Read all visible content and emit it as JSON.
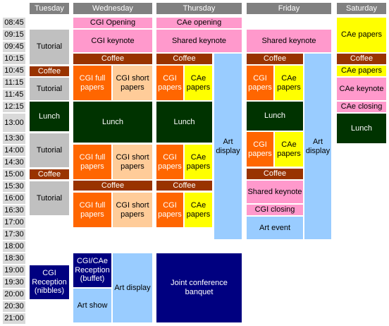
{
  "days": {
    "tuesday": "Tuesday",
    "wednesday": "Wednesday",
    "thursday": "Thursday",
    "friday": "Friday",
    "saturday": "Saturday"
  },
  "times": [
    "08:45",
    "09:15",
    "09:45",
    "10:15",
    "10:45",
    "11:15",
    "11:45",
    "12:15",
    "13:00",
    "13:30",
    "14:00",
    "14:30",
    "15:00",
    "15:30",
    "16:00",
    "16:30",
    "17:00",
    "17:30",
    "18:00",
    "18:30",
    "19:00",
    "19:30",
    "20:00",
    "20:30",
    "21:00"
  ],
  "tuesday": {
    "tutorial1": "Tutorial",
    "coffee1": "Coffee",
    "tutorial2": "Tutorial",
    "lunch": "Lunch",
    "tutorial3": "Tutorial",
    "coffee2": "Coffee",
    "tutorial4": "Tutorial",
    "reception": "CGI Reception (nibbles)"
  },
  "wednesday": {
    "opening": "CGI Opening",
    "keynote": "CGI keynote",
    "coffee1": "Coffee",
    "full1": "CGI full papers",
    "short1": "CGI short papers",
    "lunch": "Lunch",
    "full2": "CGI full papers",
    "short2": "CGI short papers",
    "coffee2": "Coffee",
    "full3": "CGI full papers",
    "short3": "CGI short papers",
    "reception": "CGI/CAe Reception (buffet)",
    "artshow": "Art show",
    "artdisplay": "Art display"
  },
  "thursday": {
    "opening": "CAe opening",
    "keynote": "Shared keynote",
    "coffee1": "Coffee",
    "cgi1": "CGI papers",
    "cae1": "CAe papers",
    "lunch": "Lunch",
    "cgi2": "CGI papers",
    "cae2": "CAe papers",
    "coffee2": "Coffee",
    "cgi3": "CGI papers",
    "cae3": "CAe papers",
    "artdisplay": "Art display",
    "banquet": "Joint conference banquet"
  },
  "friday": {
    "keynote": "Shared keynote",
    "coffee1": "Coffee",
    "cgi1": "CGI papers",
    "cae1": "CAe papers",
    "lunch": "Lunch",
    "cgi2": "CGI papers",
    "cae2": "CAe papers",
    "coffee2": "Coffee",
    "keynote2": "Shared keynote",
    "closing": "CGI closing",
    "artevent": "Art event",
    "artdisplay": "Art display"
  },
  "saturday": {
    "cae1": "CAe papers",
    "coffee": "Coffee",
    "cae2": "CAe papers",
    "keynote": "CAe keynote",
    "closing": "CAe closing",
    "lunch": "Lunch"
  }
}
